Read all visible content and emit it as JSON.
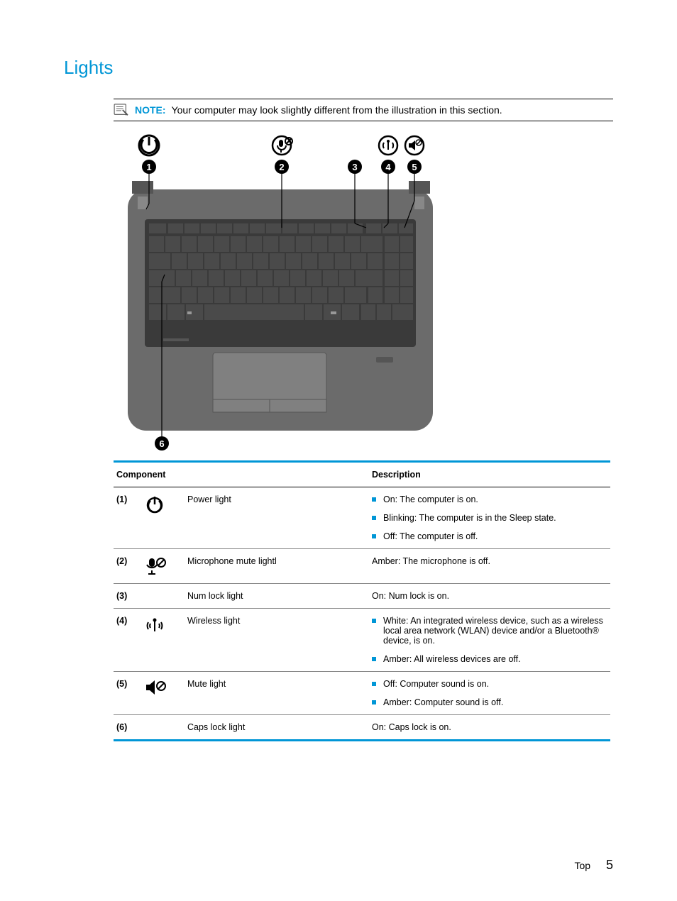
{
  "section_title": "Lights",
  "note": {
    "label": "NOTE:",
    "text": "Your computer may look slightly different from the illustration in this section."
  },
  "illustration": {
    "callouts": [
      "1",
      "2",
      "3",
      "4",
      "5",
      "6"
    ],
    "body_color": "#6b6b6b",
    "keyboard_color": "#3a3a3a",
    "key_color": "#4a4a4a",
    "touchpad_color": "#808080",
    "icon_stroke": "#000000",
    "callout_bg": "#000000",
    "callout_fg": "#ffffff",
    "leader_color": "#000000"
  },
  "table": {
    "header": {
      "component": "Component",
      "description": "Description"
    },
    "rows": [
      {
        "num": "(1)",
        "icon": "power-icon",
        "component": "Power light",
        "desc_bulleted": true,
        "desc": [
          "On: The computer is on.",
          "Blinking: The computer is in the Sleep state.",
          "Off: The computer is off."
        ]
      },
      {
        "num": "(2)",
        "icon": "mic-mute-icon",
        "component": "Microphone mute lightl",
        "desc_bulleted": false,
        "desc": [
          "Amber: The microphone is off."
        ]
      },
      {
        "num": "(3)",
        "icon": null,
        "component": "Num lock light",
        "desc_bulleted": false,
        "desc": [
          "On: Num lock is on."
        ]
      },
      {
        "num": "(4)",
        "icon": "wireless-icon",
        "component": "Wireless light",
        "desc_bulleted": true,
        "desc": [
          "White: An integrated wireless device, such as a wireless local area network (WLAN) device and/or a Bluetooth® device, is on.",
          "Amber: All wireless devices are off."
        ]
      },
      {
        "num": "(5)",
        "icon": "mute-icon",
        "component": "Mute light",
        "desc_bulleted": true,
        "desc": [
          "Off: Computer sound is on.",
          "Amber: Computer sound is off."
        ]
      },
      {
        "num": "(6)",
        "icon": null,
        "component": "Caps lock light",
        "desc_bulleted": false,
        "desc": [
          "On: Caps lock is on."
        ]
      }
    ]
  },
  "footer": {
    "label": "Top",
    "page": "5"
  },
  "colors": {
    "accent": "#0096d6",
    "text": "#000000",
    "table_border": "#888888"
  }
}
